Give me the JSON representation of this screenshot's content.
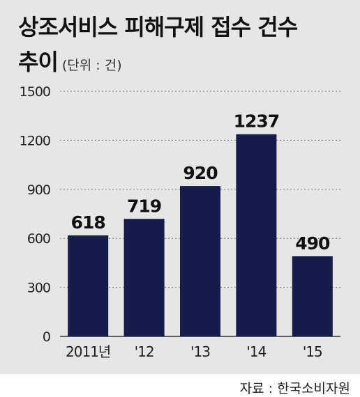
{
  "title": {
    "line1": "상조서비스 피해구제 접수 건수",
    "line2": "추이",
    "unit": "(단위 : 건)"
  },
  "source": "자료 : 한국소비자원",
  "colors": {
    "bar": "#151c4a",
    "background": "#e6e6e6",
    "grid": "#777777"
  },
  "chart_data": {
    "type": "bar",
    "categories": [
      "2011년",
      "'12",
      "'13",
      "'14",
      "'15"
    ],
    "values": [
      618,
      719,
      920,
      1237,
      490
    ],
    "ylim": [
      0,
      1500
    ],
    "yticks": [
      0,
      300,
      600,
      900,
      1200,
      1500
    ],
    "grid": "dashed horizontal"
  }
}
